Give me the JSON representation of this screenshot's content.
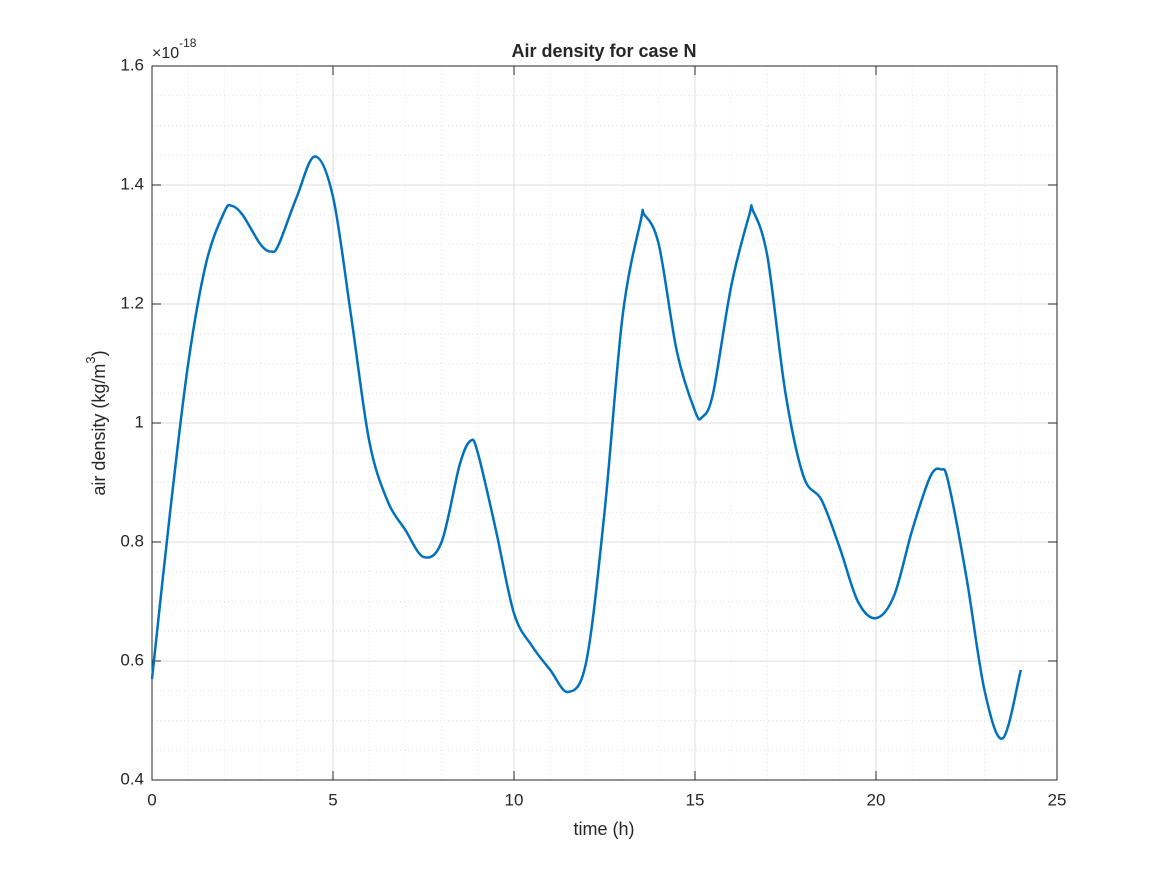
{
  "chart_data": {
    "type": "line",
    "title": "Air density for case N",
    "xlabel": "time (h)",
    "ylabel": {
      "text": "air density (kg/m",
      "sup": "3",
      "close": ")"
    },
    "y_multiplier": {
      "base": "×10",
      "exponent": "-18"
    },
    "x": [
      0,
      0.5,
      1,
      1.5,
      2,
      2.2,
      2.5,
      3,
      3.3,
      3.5,
      4,
      4.5,
      5,
      5.5,
      6,
      6.5,
      7,
      7.5,
      8,
      8.5,
      8.8,
      9,
      9.5,
      10,
      10.5,
      11,
      11.5,
      12,
      12.5,
      13,
      13.5,
      13.6,
      14,
      14.5,
      15,
      15.2,
      15.5,
      16,
      16.5,
      16.6,
      17,
      17.5,
      18,
      18.5,
      19,
      19.5,
      20,
      20.5,
      21,
      21.5,
      21.8,
      22,
      22.5,
      23,
      23.5,
      24
    ],
    "series": [
      {
        "name": "air density",
        "color": "#0072bd",
        "values": [
          0.57,
          0.85,
          1.1,
          1.27,
          1.355,
          1.365,
          1.35,
          1.3,
          1.288,
          1.3,
          1.38,
          1.448,
          1.38,
          1.18,
          0.97,
          0.87,
          0.82,
          0.775,
          0.8,
          0.93,
          0.97,
          0.95,
          0.82,
          0.68,
          0.625,
          0.585,
          0.548,
          0.6,
          0.85,
          1.18,
          1.34,
          1.35,
          1.3,
          1.12,
          1.02,
          1.01,
          1.05,
          1.23,
          1.35,
          1.357,
          1.28,
          1.05,
          0.91,
          0.87,
          0.79,
          0.7,
          0.672,
          0.71,
          0.82,
          0.91,
          0.922,
          0.9,
          0.74,
          0.55,
          0.47,
          0.585
        ]
      }
    ],
    "xlim": [
      0,
      25
    ],
    "xticks": [
      0,
      5,
      10,
      15,
      20,
      25
    ],
    "ylim": [
      0.4,
      1.6
    ],
    "yticks": [
      0.4,
      0.6,
      0.8,
      1,
      1.2,
      1.4,
      1.6
    ],
    "grid": true,
    "minor_grid": true
  }
}
